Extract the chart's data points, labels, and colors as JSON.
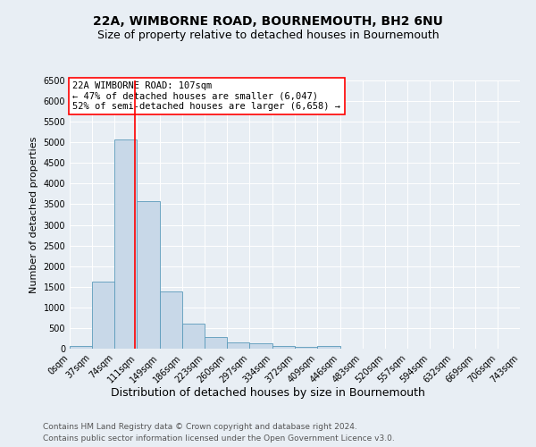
{
  "title_line1": "22A, WIMBORNE ROAD, BOURNEMOUTH, BH2 6NU",
  "title_line2": "Size of property relative to detached houses in Bournemouth",
  "xlabel": "Distribution of detached houses by size in Bournemouth",
  "ylabel": "Number of detached properties",
  "footer_line1": "Contains HM Land Registry data © Crown copyright and database right 2024.",
  "footer_line2": "Contains public sector information licensed under the Open Government Licence v3.0.",
  "bin_edges": [
    0,
    37,
    74,
    111,
    149,
    186,
    223,
    260,
    297,
    334,
    372,
    409,
    446,
    483,
    520,
    557,
    594,
    632,
    669,
    706,
    743
  ],
  "bar_heights": [
    60,
    1620,
    5060,
    3570,
    1390,
    610,
    290,
    150,
    120,
    70,
    40,
    60,
    0,
    0,
    0,
    0,
    0,
    0,
    0,
    0
  ],
  "bar_color": "#c8d8e8",
  "bar_edge_color": "#5a9aba",
  "property_size": 107,
  "annotation_text": "22A WIMBORNE ROAD: 107sqm\n← 47% of detached houses are smaller (6,047)\n52% of semi-detached houses are larger (6,658) →",
  "annotation_box_color": "white",
  "annotation_box_edge_color": "red",
  "vline_color": "red",
  "ylim": [
    0,
    6500
  ],
  "yticks": [
    0,
    500,
    1000,
    1500,
    2000,
    2500,
    3000,
    3500,
    4000,
    4500,
    5000,
    5500,
    6000,
    6500
  ],
  "background_color": "#e8eef4",
  "title1_fontsize": 10,
  "title2_fontsize": 9,
  "xlabel_fontsize": 9,
  "ylabel_fontsize": 8,
  "tick_fontsize": 7,
  "annotation_fontsize": 7.5,
  "footer_fontsize": 6.5
}
